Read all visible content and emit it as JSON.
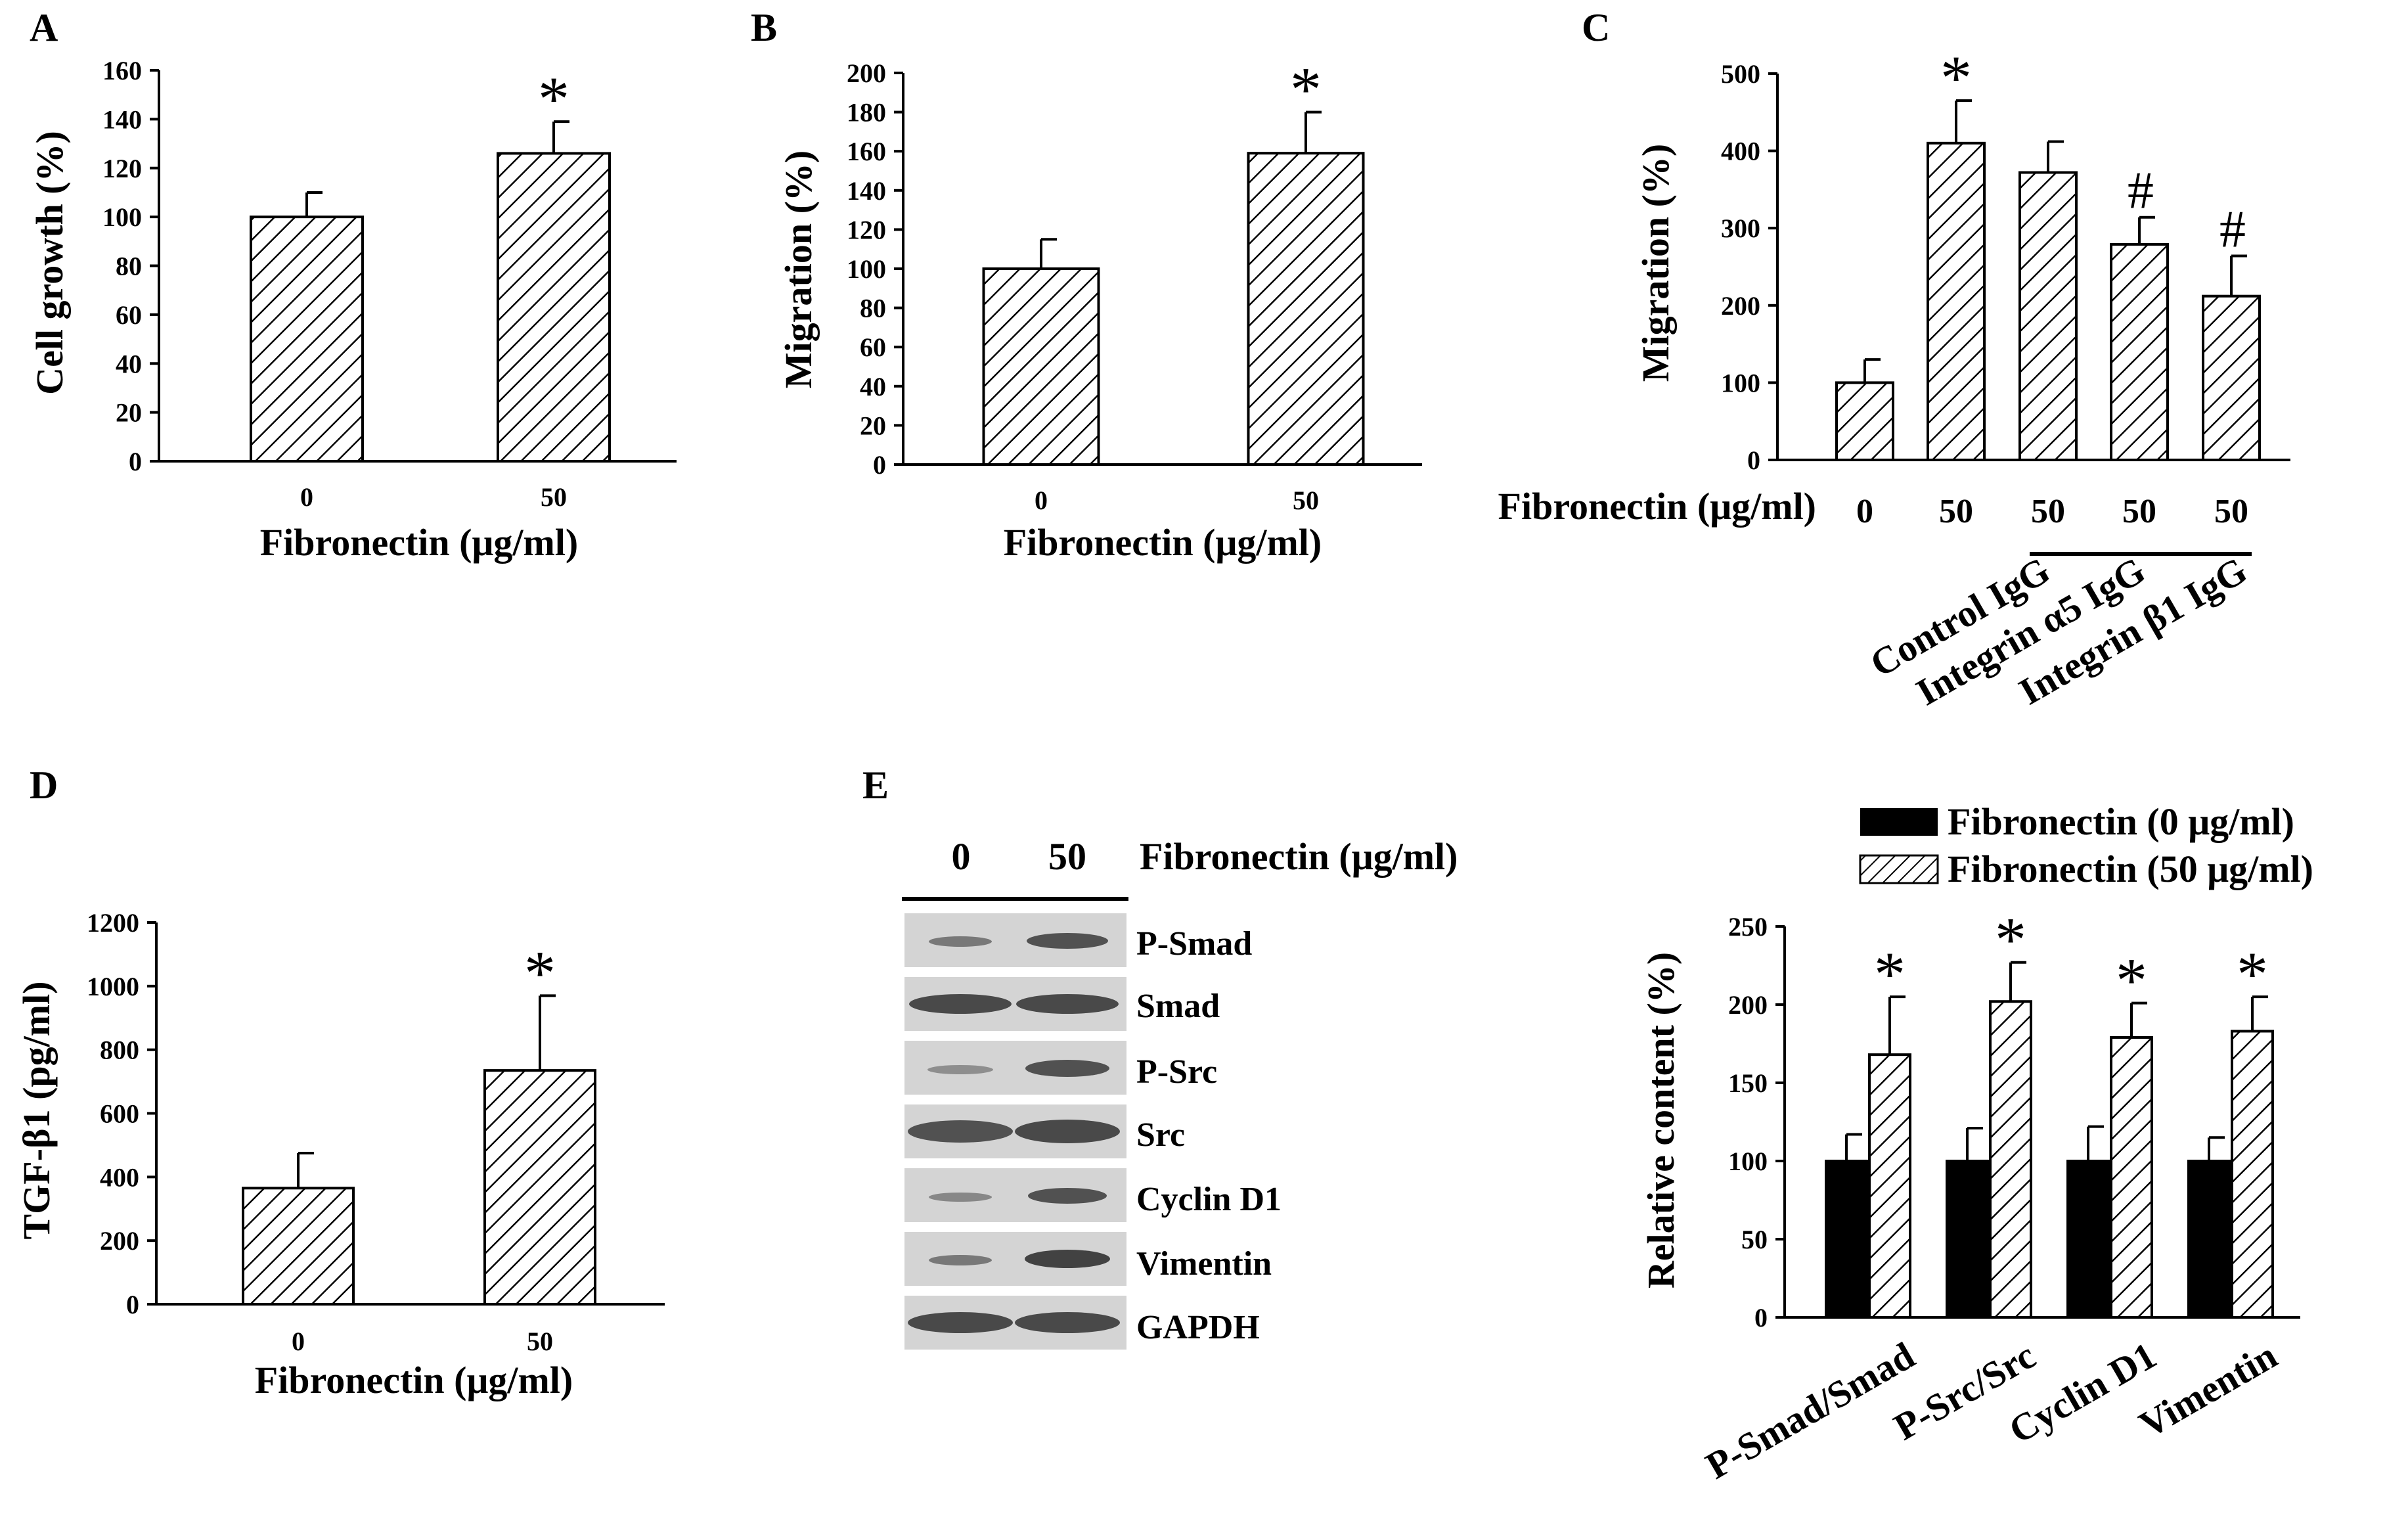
{
  "chart_data": [
    {
      "id": "A",
      "type": "bar",
      "panel_label": "A",
      "categories": [
        "0",
        "50"
      ],
      "values": [
        100,
        126
      ],
      "errors": [
        10,
        13
      ],
      "significance": [
        "",
        "*"
      ],
      "ylabel": "Cell growth (%)",
      "xlabel": "Fibronectin (μg/ml)",
      "ylim": [
        0,
        160
      ],
      "yticks": [
        "0",
        "20",
        "40",
        "60",
        "80",
        "100",
        "120",
        "140",
        "160"
      ],
      "pattern": "hatched"
    },
    {
      "id": "B",
      "type": "bar",
      "panel_label": "B",
      "categories": [
        "0",
        "50"
      ],
      "values": [
        100,
        159
      ],
      "errors": [
        15,
        21
      ],
      "significance": [
        "",
        "*"
      ],
      "ylabel": "Migration (%)",
      "xlabel": "Fibronectin (μg/ml)",
      "ylim": [
        0,
        200
      ],
      "yticks": [
        "0",
        "20",
        "40",
        "60",
        "80",
        "100",
        "120",
        "140",
        "160",
        "180",
        "200"
      ],
      "pattern": "hatched"
    },
    {
      "id": "C",
      "type": "bar",
      "panel_label": "C",
      "categories": [
        "0",
        "50",
        "50",
        "50",
        "50"
      ],
      "values": [
        100,
        410,
        372,
        279,
        212
      ],
      "errors": [
        30,
        55,
        40,
        35,
        52
      ],
      "significance": [
        "",
        "*",
        "",
        "#",
        "#"
      ],
      "ylabel": "Migration (%)",
      "xlabel": "Fibronectin (μg/ml)",
      "ylim": [
        0,
        500
      ],
      "yticks": [
        "0",
        "100",
        "200",
        "300",
        "400",
        "500"
      ],
      "treatments": [
        "Control IgG",
        "Integrin α5 IgG",
        "Integrin β1 IgG"
      ],
      "pattern": "hatched"
    },
    {
      "id": "D",
      "type": "bar",
      "panel_label": "D",
      "categories": [
        "0",
        "50"
      ],
      "values": [
        365,
        735
      ],
      "errors": [
        110,
        235
      ],
      "significance": [
        "",
        "*"
      ],
      "ylabel": "TGF-β1 (pg/ml)",
      "xlabel": "Fibronectin (μg/ml)",
      "ylim": [
        0,
        1200
      ],
      "yticks": [
        "0",
        "200",
        "400",
        "600",
        "800",
        "1000",
        "1200"
      ],
      "pattern": "hatched"
    },
    {
      "id": "E",
      "type": "bar",
      "panel_label": "E",
      "categories": [
        "P-Smad/Smad",
        "P-Src/Src",
        "Cyclin D1",
        "Vimentin"
      ],
      "series": [
        {
          "name": "Fibronectin (0 μg/ml)",
          "values": [
            100,
            100,
            100,
            100
          ],
          "errors": [
            17,
            21,
            22,
            15
          ],
          "fill": "#000000"
        },
        {
          "name": "Fibronectin (50 μg/ml)",
          "values": [
            168,
            202,
            179,
            183
          ],
          "errors": [
            37,
            25,
            22,
            22
          ],
          "fill": "hatched"
        }
      ],
      "significance": [
        "*",
        "*",
        "*",
        "*"
      ],
      "ylabel": "Relative content (%)",
      "xlabel": "",
      "ylim": [
        0,
        250
      ],
      "yticks": [
        "0",
        "50",
        "100",
        "150",
        "200",
        "250"
      ],
      "legend_position": "top"
    }
  ],
  "western_blot": {
    "lane_labels": [
      "0",
      "50"
    ],
    "header": "Fibronectin (μg/ml)",
    "bands": [
      "P-Smad",
      "Smad",
      "P-Src",
      "Src",
      "Cyclin D1",
      "Vimentin",
      "GAPDH"
    ]
  }
}
